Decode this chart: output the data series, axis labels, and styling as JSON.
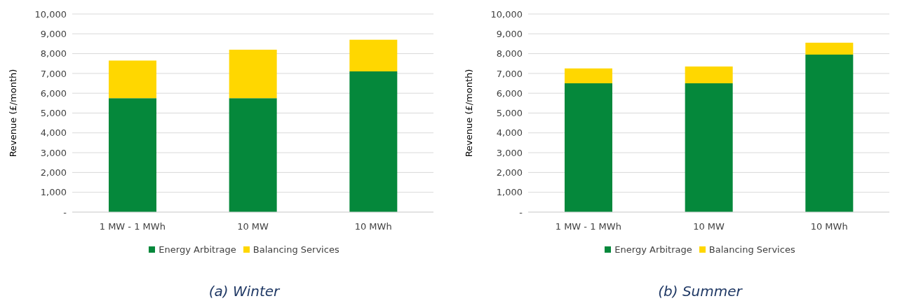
{
  "chart_data": [
    {
      "type": "bar",
      "title": "(a) Winter",
      "ylabel": "Revenue (£/month)",
      "categories": [
        "1 MW - 1 MWh",
        "10 MW",
        "10 MWh"
      ],
      "stacked": true,
      "series": [
        {
          "name": "Energy Arbitrage",
          "color": "#05883b",
          "values": [
            5750,
            5750,
            7100
          ]
        },
        {
          "name": "Balancing Services",
          "color": "#ffd700",
          "values": [
            1900,
            2450,
            1600
          ]
        }
      ],
      "ylim": [
        0,
        10000
      ],
      "yticks": [
        {
          "value": 0,
          "label": "-"
        },
        {
          "value": 1000,
          "label": "1,000"
        },
        {
          "value": 2000,
          "label": "2,000"
        },
        {
          "value": 3000,
          "label": "3,000"
        },
        {
          "value": 4000,
          "label": "4,000"
        },
        {
          "value": 5000,
          "label": "5,000"
        },
        {
          "value": 6000,
          "label": "6,000"
        },
        {
          "value": 7000,
          "label": "7,000"
        },
        {
          "value": 8000,
          "label": "8,000"
        },
        {
          "value": 9000,
          "label": "9,000"
        },
        {
          "value": 10000,
          "label": "10,000"
        }
      ],
      "grid": "y",
      "legend": "bottom"
    },
    {
      "type": "bar",
      "title": "(b) Summer",
      "ylabel": "Revenue (£/month)",
      "categories": [
        "1 MW - 1 MWh",
        "10 MW",
        "10 MWh"
      ],
      "stacked": true,
      "series": [
        {
          "name": "Energy Arbitrage",
          "color": "#05883b",
          "values": [
            6500,
            6500,
            7950
          ]
        },
        {
          "name": "Balancing Services",
          "color": "#ffd700",
          "values": [
            750,
            850,
            600
          ]
        }
      ],
      "ylim": [
        0,
        10000
      ],
      "yticks": [
        {
          "value": 0,
          "label": "-"
        },
        {
          "value": 1000,
          "label": "1,000"
        },
        {
          "value": 2000,
          "label": "2,000"
        },
        {
          "value": 3000,
          "label": "3,000"
        },
        {
          "value": 4000,
          "label": "4,000"
        },
        {
          "value": 5000,
          "label": "5,000"
        },
        {
          "value": 6000,
          "label": "6,000"
        },
        {
          "value": 7000,
          "label": "7,000"
        },
        {
          "value": 8000,
          "label": "8,000"
        },
        {
          "value": 9000,
          "label": "9,000"
        },
        {
          "value": 10000,
          "label": "10,000"
        }
      ],
      "grid": "y",
      "legend": "bottom"
    }
  ]
}
